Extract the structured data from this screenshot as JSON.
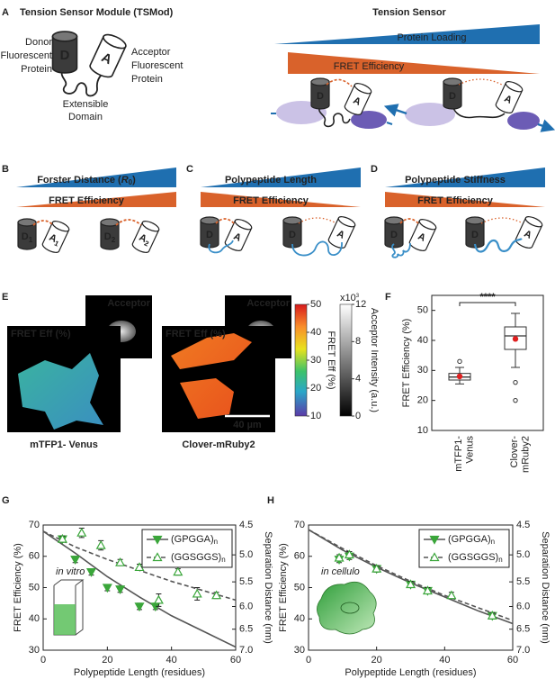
{
  "panel_labels": [
    "A",
    "B",
    "C",
    "D",
    "E",
    "F",
    "G",
    "H"
  ],
  "glyphs": {
    "donor": "D",
    "acceptor": "A"
  },
  "A": {
    "title": "Tension Sensor Module (TSMod)",
    "donor_label": [
      "Donor",
      "Fluorescent",
      "Protein"
    ],
    "acceptor_label": [
      "Acceptor",
      "Fluorescent",
      "Protein"
    ],
    "domain_label": [
      "Extensible",
      "Domain"
    ],
    "sensor_title": "Tension Sensor",
    "loading": "Protein Loading",
    "fret": "FRET Efficiency"
  },
  "B": {
    "wedge_parts": [
      "Forster Distance (",
      "R",
      "0",
      ")"
    ],
    "fret": "FRET Efficiency",
    "subscripts": [
      "1",
      "2"
    ]
  },
  "C": {
    "wedge": "Polypeptide Length",
    "fret": "FRET Efficiency"
  },
  "D": {
    "wedge": "Polypeptide Stiffness",
    "fret": "FRET Efficiency"
  },
  "E": {
    "acceptor": "Acceptor",
    "fret_eff": "FRET Eff (%)",
    "samples": [
      "mTFP1- Venus",
      "Clover-mRuby2"
    ],
    "scale_bar": "40 µm",
    "colorbar": {
      "label": "FRET Eff (%)",
      "lim": [
        10,
        50
      ],
      "ticks": [
        10,
        20,
        30,
        40,
        50
      ]
    },
    "graybar": {
      "label": "Acceptor Intensity (a.u.)",
      "multiplier": [
        "x10",
        "3"
      ],
      "lim": [
        0,
        12
      ],
      "ticks": [
        0,
        4,
        8,
        12
      ]
    }
  },
  "chart_data": [
    {
      "type": "box",
      "ylabel": "FRET Efficiency (%)",
      "categories": [
        [
          "mTFP1-",
          "Venus"
        ],
        [
          "Clover-",
          "mRuby2"
        ]
      ],
      "ylim": [
        10,
        55
      ],
      "yticks": [
        10,
        20,
        30,
        40,
        50
      ],
      "significance": "****",
      "box_color": "#333333",
      "mean_color": "#e02020",
      "boxes": [
        {
          "whisker_low": 25.5,
          "q1": 26.8,
          "median": 27.8,
          "q3": 29,
          "whisker_high": 31,
          "mean": 28,
          "outliers": [
            33
          ]
        },
        {
          "whisker_low": 31,
          "q1": 37,
          "median": 41.5,
          "q3": 44.5,
          "whisker_high": 49,
          "mean": 40.5,
          "outliers": [
            26,
            20
          ]
        }
      ]
    },
    {
      "type": "scatter",
      "annotation": "in vitro",
      "xlabel": "Polypeptide Length (residues)",
      "ylabel": "FRET Efficiency (%)",
      "y2label": "Separation Distance (nm)",
      "xlim": [
        0,
        60
      ],
      "xticks": [
        0,
        20,
        40,
        60
      ],
      "ylim": [
        30,
        70
      ],
      "yticks": [
        30,
        40,
        50,
        60,
        70
      ],
      "y2lim": [
        4.5,
        7
      ],
      "y2scale": "log",
      "y2ticks": [
        4.5,
        {
          "value": 5,
          "label": "5.0"
        },
        5.5,
        {
          "value": 6,
          "label": "6.0"
        },
        6.5,
        {
          "value": 7,
          "label": "7.0"
        }
      ],
      "legend": "upper right",
      "series": [
        {
          "name": [
            "(GPGGA)",
            "n"
          ],
          "color": "#3aa63a",
          "marker": "triangle-down",
          "filled": true,
          "x": [
            6,
            10,
            15,
            20,
            24,
            30,
            35
          ],
          "values": [
            65.5,
            59,
            55,
            50,
            49.5,
            44,
            44
          ],
          "errors": [
            0.8,
            1,
            1,
            1,
            1,
            1,
            1
          ],
          "fit": {
            "x": [
              0,
              10,
              20,
              30,
              40,
              50,
              60
            ],
            "values": [
              68,
              61,
              53.5,
              47,
              41,
              36,
              31
            ],
            "color": "#555555",
            "dashed": false
          }
        },
        {
          "name": [
            "(GGSGGS)",
            "n"
          ],
          "color": "#3aa63a",
          "marker": "triangle-up",
          "filled": false,
          "x": [
            6,
            12,
            18,
            24,
            30,
            36,
            42,
            48,
            54
          ],
          "values": [
            65.5,
            67.5,
            63.5,
            58,
            56.5,
            46,
            55,
            48,
            47.5
          ],
          "errors": [
            1,
            1.5,
            1.5,
            1,
            1,
            2,
            1,
            2,
            1
          ],
          "fit": {
            "x": [
              0,
              10,
              20,
              30,
              40,
              50,
              60
            ],
            "values": [
              68,
              63,
              59,
              55.5,
              52,
              49,
              46
            ],
            "color": "#555555",
            "dashed": true
          }
        }
      ]
    },
    {
      "type": "scatter",
      "annotation": "in cellulo",
      "xlabel": "Polypeptide Length (residues)",
      "ylabel": "FRET Efficiency (%)",
      "y2label": "Separation Distance (nm)",
      "xlim": [
        0,
        60
      ],
      "xticks": [
        0,
        20,
        40,
        60
      ],
      "ylim": [
        30,
        70
      ],
      "yticks": [
        30,
        40,
        50,
        60,
        70
      ],
      "y2lim": [
        4.5,
        7
      ],
      "y2scale": "log",
      "y2ticks": [
        4.5,
        {
          "value": 5,
          "label": "5.0"
        },
        5.5,
        {
          "value": 6,
          "label": "6.0"
        },
        6.5,
        {
          "value": 7,
          "label": "7.0"
        }
      ],
      "legend": "upper right",
      "series": [
        {
          "name": [
            "(GPGGA)",
            "n"
          ],
          "color": "#3aa63a",
          "marker": "triangle-down",
          "filled": true,
          "x": [
            9,
            12,
            20,
            30,
            35,
            54
          ],
          "values": [
            59,
            60,
            56,
            51,
            49,
            41
          ],
          "errors": [
            1,
            1,
            1,
            1,
            1,
            1
          ],
          "fit": {
            "x": [
              0,
              10,
              20,
              30,
              40,
              50,
              60
            ],
            "values": [
              68.5,
              62,
              56.5,
              51.5,
              47,
              42.5,
              38.5
            ],
            "color": "#555555",
            "dashed": false
          }
        },
        {
          "name": [
            "(GGSGGS)",
            "n"
          ],
          "color": "#3aa63a",
          "marker": "triangle-up",
          "filled": false,
          "x": [
            9,
            12,
            20,
            30,
            35,
            42,
            54
          ],
          "values": [
            59.5,
            60.5,
            56,
            51,
            49,
            47.5,
            41
          ],
          "errors": [
            1,
            1,
            1,
            1,
            1,
            1,
            1
          ],
          "fit": {
            "x": [
              0,
              10,
              20,
              30,
              40,
              50,
              60
            ],
            "values": [
              68.5,
              62.5,
              57,
              52,
              47.5,
              43.5,
              39.5
            ],
            "color": "#555555",
            "dashed": true
          }
        }
      ]
    }
  ]
}
